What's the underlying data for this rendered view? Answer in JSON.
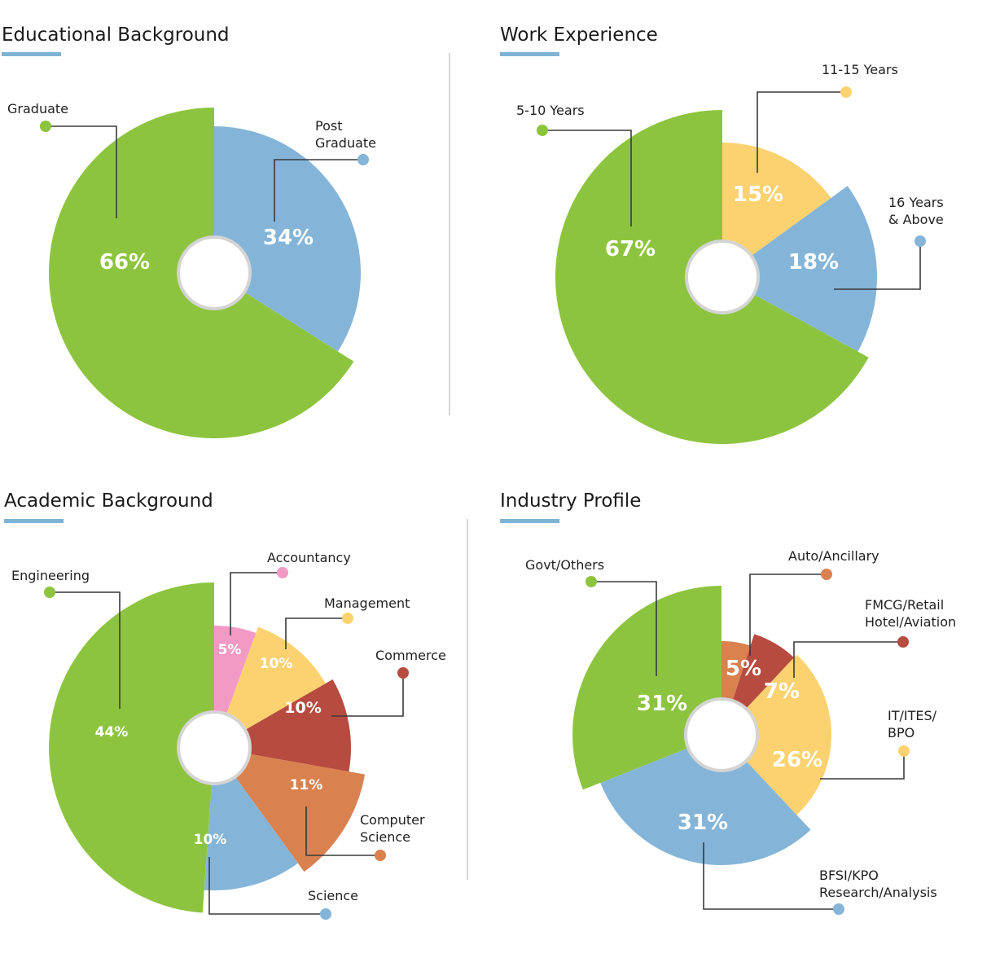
{
  "chart_data": [
    {
      "type": "pie",
      "title": "Educational Background",
      "style": "rose-donut",
      "slices": [
        {
          "label": "Post Graduate",
          "value": 34,
          "display": "34%",
          "color": "#84b5d8"
        },
        {
          "label": "Graduate",
          "value": 66,
          "display": "66%",
          "color": "#8dc43f"
        }
      ]
    },
    {
      "type": "pie",
      "title": "Work Experience",
      "style": "rose-donut",
      "slices": [
        {
          "label": "11-15 Years",
          "value": 15,
          "display": "15%",
          "color": "#fcd271"
        },
        {
          "label": "16 Years & Above",
          "value": 18,
          "display": "18%",
          "color": "#84b5d8"
        },
        {
          "label": "5-10 Years",
          "value": 67,
          "display": "67%",
          "color": "#8dc43f"
        }
      ]
    },
    {
      "type": "pie",
      "title": "Academic Background",
      "style": "rose-donut",
      "slices": [
        {
          "label": "Accountancy",
          "value": 5,
          "display": "5%",
          "color": "#f29ac4"
        },
        {
          "label": "Management",
          "value": 10,
          "display": "10%",
          "color": "#fcd271"
        },
        {
          "label": "Commerce",
          "value": 10,
          "display": "10%",
          "color": "#b74b3f"
        },
        {
          "label": "Computer Science",
          "value": 11,
          "display": "11%",
          "color": "#d9814f"
        },
        {
          "label": "Science",
          "value": 10,
          "display": "10%",
          "color": "#84b5d8"
        },
        {
          "label": "Engineering",
          "value": 44,
          "display": "44%",
          "color": "#8dc43f"
        }
      ]
    },
    {
      "type": "pie",
      "title": "Industry Profile",
      "style": "rose-donut",
      "slices": [
        {
          "label": "Auto/Ancillary",
          "value": 5,
          "display": "5%",
          "color": "#d9814f"
        },
        {
          "label": "FMCG/Retail Hotel/Aviation",
          "value": 7,
          "display": "7%",
          "color": "#b74b3f"
        },
        {
          "label": "IT/ITES/ BPO",
          "value": 26,
          "display": "26%",
          "color": "#fcd271"
        },
        {
          "label": "BFSI/KPO Research/Analysis",
          "value": 31,
          "display": "31%",
          "color": "#84b5d8"
        },
        {
          "label": "Govt/Others",
          "value": 31,
          "display": "31%",
          "color": "#8dc43f"
        }
      ]
    }
  ],
  "accent_color": "#7fb3d6",
  "divider_color": "#d6d6d6"
}
